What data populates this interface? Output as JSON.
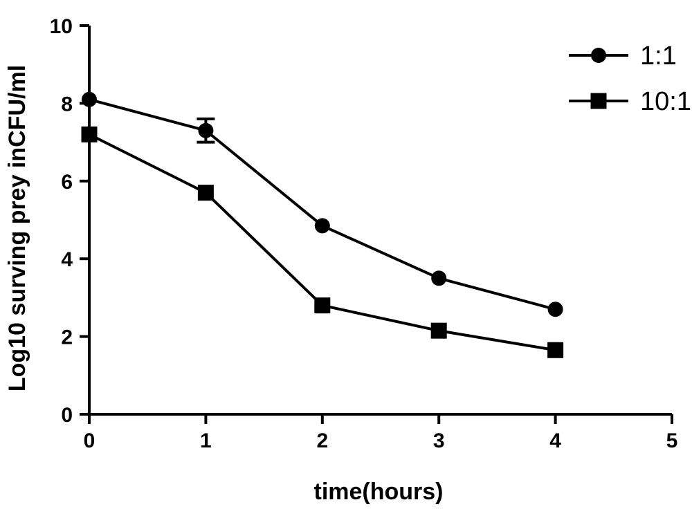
{
  "chart_data": {
    "type": "line",
    "title": "",
    "xlabel": "time(hours)",
    "ylabel": "Log10 surving prey inCFU/ml",
    "xlim": [
      0,
      5
    ],
    "ylim": [
      0,
      10
    ],
    "x_ticks": [
      0,
      1,
      2,
      3,
      4,
      5
    ],
    "y_ticks": [
      0,
      2,
      4,
      6,
      8,
      10
    ],
    "grid": false,
    "legend_position": "top-right",
    "series": [
      {
        "name": "1:1",
        "marker": "circle",
        "color": "#000000",
        "x": [
          0,
          1,
          2,
          3,
          4
        ],
        "y": [
          8.1,
          7.3,
          4.85,
          3.5,
          2.7
        ],
        "error": [
          0,
          0.3,
          0,
          0,
          0
        ]
      },
      {
        "name": "10:1",
        "marker": "square",
        "color": "#000000",
        "x": [
          0,
          1,
          2,
          3,
          4
        ],
        "y": [
          7.2,
          5.7,
          2.8,
          2.15,
          1.65
        ],
        "error": [
          0,
          0,
          0,
          0,
          0
        ]
      }
    ]
  }
}
